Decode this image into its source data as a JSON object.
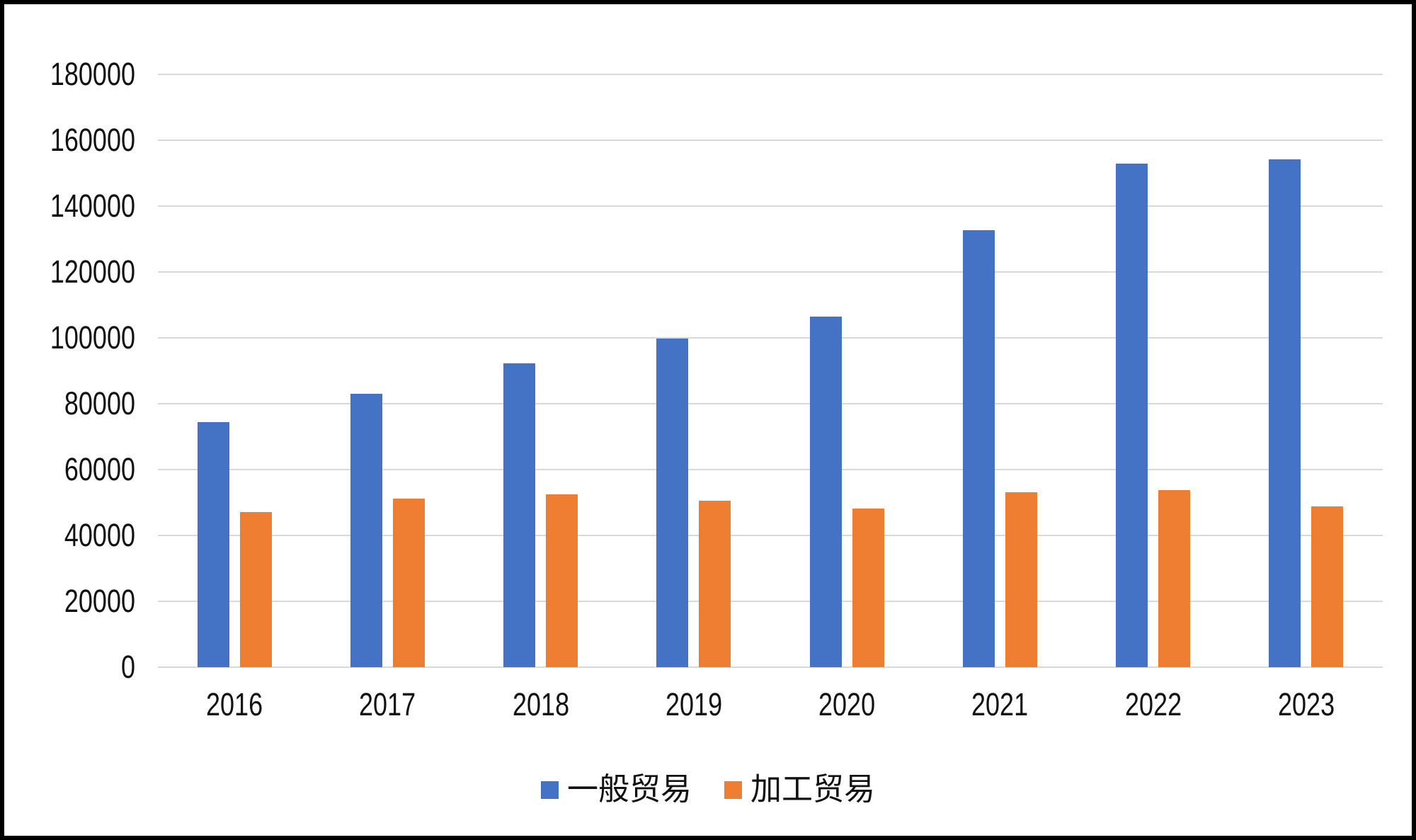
{
  "chart_data": {
    "type": "bar",
    "title": "",
    "xlabel": "",
    "ylabel": "",
    "categories": [
      "2016",
      "2017",
      "2018",
      "2019",
      "2020",
      "2021",
      "2022",
      "2023"
    ],
    "series": [
      {
        "name": "一般贸易",
        "color": "#4472C4",
        "values": [
          74400,
          83100,
          92300,
          99700,
          106500,
          132700,
          152900,
          154100
        ]
      },
      {
        "name": "加工贸易",
        "color": "#ED7D31",
        "values": [
          47100,
          51200,
          52500,
          50500,
          48200,
          53100,
          53700,
          48800
        ]
      }
    ],
    "ylim": [
      0,
      180000
    ],
    "ytick_step": 20000,
    "yticks": [
      "0",
      "20000",
      "40000",
      "60000",
      "80000",
      "100000",
      "120000",
      "140000",
      "160000",
      "180000"
    ],
    "grid": true,
    "gridline_color": "#D9D9D9",
    "legend_position": "bottom",
    "background_color": "#FFFFFF",
    "border_color": "#000000"
  }
}
